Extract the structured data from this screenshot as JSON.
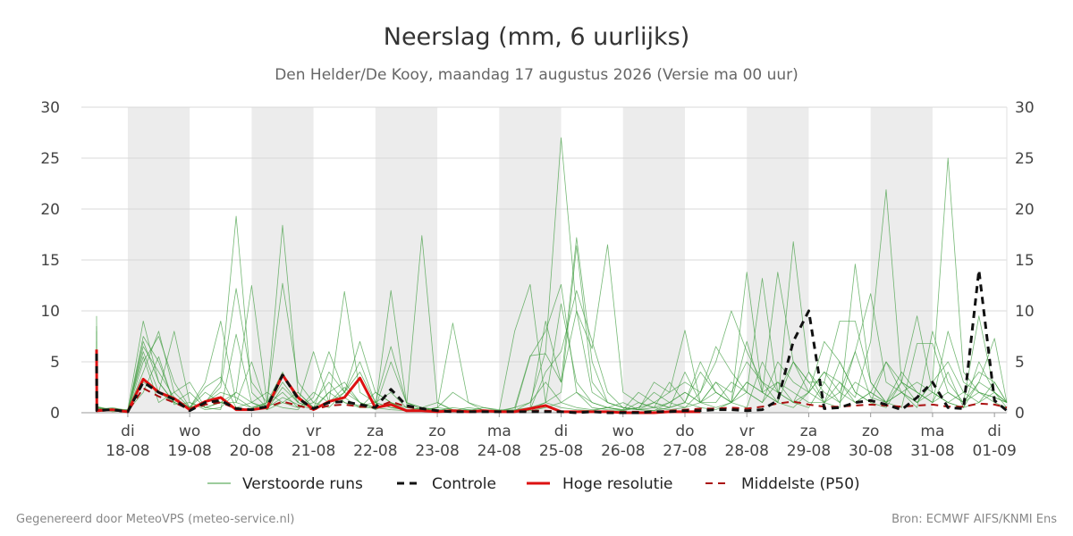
{
  "title": "Neerslag (mm, 6 uurlijks)",
  "subtitle": "Den Helder/De Kooy, maandag 17 augustus 2026 (Versie ma 00 uur)",
  "footer_left": "Gegenereerd door MeteoVPS (meteo-service.nl)",
  "footer_right": "Bron: ECMWF AIFS/KNMI Ens",
  "legend": [
    {
      "label": "Verstoorde runs",
      "color": "#3a9a3a",
      "style": "thin-solid"
    },
    {
      "label": "Controle",
      "color": "#111111",
      "style": "dashed"
    },
    {
      "label": "Hoge resolutie",
      "color": "#dd1111",
      "style": "solid"
    },
    {
      "label": "Middelste (P50)",
      "color": "#aa1111",
      "style": "dashed"
    }
  ],
  "chart_data": {
    "type": "line",
    "x_unit": "days after 2026-08-17 00:00, 6-hourly steps",
    "ylim": [
      0,
      30
    ],
    "yticks": [
      0,
      5,
      10,
      15,
      20,
      25,
      30
    ],
    "grid": true,
    "legend_position": "bottom",
    "x_tick_labels": [
      {
        "day": "di",
        "date": "18-08"
      },
      {
        "day": "wo",
        "date": "19-08"
      },
      {
        "day": "do",
        "date": "20-08"
      },
      {
        "day": "vr",
        "date": "21-08"
      },
      {
        "day": "za",
        "date": "22-08"
      },
      {
        "day": "zo",
        "date": "23-08"
      },
      {
        "day": "ma",
        "date": "24-08"
      },
      {
        "day": "di",
        "date": "25-08"
      },
      {
        "day": "wo",
        "date": "26-08"
      },
      {
        "day": "do",
        "date": "27-08"
      },
      {
        "day": "vr",
        "date": "28-08"
      },
      {
        "day": "za",
        "date": "29-08"
      },
      {
        "day": "zo",
        "date": "30-08"
      },
      {
        "day": "ma",
        "date": "31-08"
      },
      {
        "day": "di",
        "date": "01-09"
      }
    ],
    "shaded_days": [
      1,
      3,
      5,
      7,
      9,
      11,
      13
    ],
    "series": [
      {
        "name": "Controle",
        "color": "#111111",
        "dash": "8,6",
        "width": 3,
        "x": [
          0,
          0.25,
          0.5,
          0.75,
          1.0,
          1.25,
          1.5,
          1.75,
          2.0,
          2.25,
          2.5,
          2.75,
          3.0,
          3.25,
          3.5,
          3.75,
          4.0,
          4.25,
          4.5,
          4.75,
          5.0,
          5.25,
          5.5,
          5.75,
          6.0,
          6.25,
          6.5,
          6.75,
          7.0,
          7.25,
          7.5,
          7.75,
          8.0,
          8.25,
          8.5,
          8.75,
          9.0,
          9.25,
          9.5,
          9.75,
          10.0,
          10.25,
          10.5,
          10.75,
          11.0,
          11.25,
          11.5,
          11.75,
          12.0,
          12.25,
          12.5,
          12.75,
          13.0,
          13.25,
          13.5,
          13.75,
          14.0,
          14.25,
          14.5,
          14.75,
          15.0
        ],
        "y": [
          5.8,
          0.2,
          0.3,
          0.1,
          3.0,
          2.0,
          1.3,
          0.2,
          1.0,
          1.2,
          0.4,
          0.3,
          0.6,
          3.7,
          1.4,
          0.4,
          1.0,
          1.1,
          0.8,
          0.5,
          2.3,
          0.7,
          0.4,
          0.2,
          0.1,
          0.1,
          0.1,
          0.1,
          0.1,
          0.1,
          0.1,
          0.1,
          0.0,
          0.1,
          0.0,
          0.0,
          0.0,
          0.1,
          0.1,
          0.2,
          0.2,
          0.3,
          0.3,
          0.2,
          0.3,
          1.2,
          7.0,
          10.0,
          0.4,
          0.5,
          1.0,
          1.2,
          0.8,
          0.3,
          1.5,
          3.0,
          0.5,
          0.4,
          14.0,
          1.2,
          0.2
        ]
      },
      {
        "name": "Hoge resolutie",
        "color": "#dd1111",
        "dash": "",
        "width": 3,
        "x": [
          0,
          0.25,
          0.5,
          0.75,
          1.0,
          1.25,
          1.5,
          1.75,
          2.0,
          2.25,
          2.5,
          2.75,
          3.0,
          3.25,
          3.5,
          3.75,
          4.0,
          4.25,
          4.5,
          4.75,
          5.0,
          5.25,
          5.5,
          5.75,
          6.0,
          6.25,
          6.5,
          6.75,
          7.0,
          7.25,
          7.5,
          7.75,
          8.0,
          8.25,
          8.5,
          8.75,
          9.0,
          9.25,
          9.5,
          9.75,
          10.0
        ],
        "y": [
          6.2,
          0.2,
          0.3,
          0.1,
          3.3,
          2.0,
          1.4,
          0.3,
          1.1,
          1.5,
          0.3,
          0.3,
          0.5,
          3.7,
          1.5,
          0.3,
          1.1,
          1.5,
          3.4,
          0.5,
          0.8,
          0.2,
          0.2,
          0.1,
          0.2,
          0.1,
          0.2,
          0.1,
          0.1,
          0.4,
          0.7,
          0.1,
          0.1,
          0.1,
          0.1,
          0.0,
          0.0,
          0.0,
          0.1,
          0.1,
          0.1
        ]
      },
      {
        "name": "Middelste (P50)",
        "color": "#aa1111",
        "dash": "8,6",
        "width": 2,
        "x": [
          0,
          0.25,
          0.5,
          0.75,
          1.0,
          1.25,
          1.5,
          1.75,
          2.0,
          2.25,
          2.5,
          2.75,
          3.0,
          3.25,
          3.5,
          3.75,
          4.0,
          4.25,
          4.5,
          4.75,
          5.0,
          5.25,
          5.5,
          5.75,
          6.0,
          6.25,
          6.5,
          6.75,
          7.0,
          7.25,
          7.5,
          7.75,
          8.0,
          8.25,
          8.5,
          8.75,
          9.0,
          9.25,
          9.5,
          9.75,
          10.0,
          10.25,
          10.5,
          10.75,
          11.0,
          11.25,
          11.5,
          11.75,
          12.0,
          12.25,
          12.5,
          12.75,
          13.0,
          13.25,
          13.5,
          13.75,
          14.0,
          14.25,
          14.5,
          14.75,
          15.0
        ],
        "y": [
          5.5,
          0.3,
          0.3,
          0.1,
          2.4,
          1.6,
          1.0,
          0.3,
          0.8,
          1.0,
          0.4,
          0.3,
          0.5,
          1.1,
          0.7,
          0.3,
          0.7,
          0.8,
          0.6,
          0.5,
          1.1,
          0.6,
          0.3,
          0.2,
          0.1,
          0.1,
          0.1,
          0.1,
          0.1,
          0.2,
          0.2,
          0.1,
          0.1,
          0.1,
          0.1,
          0.1,
          0.1,
          0.1,
          0.2,
          0.3,
          0.4,
          0.4,
          0.5,
          0.4,
          0.6,
          0.9,
          1.1,
          0.8,
          0.6,
          0.6,
          0.7,
          0.8,
          0.7,
          0.6,
          0.7,
          0.8,
          0.6,
          0.6,
          0.9,
          0.8,
          0.5
        ]
      }
    ],
    "perturbed_runs": {
      "name": "Verstoorde runs",
      "color": "#3a9a3a",
      "width": 0.8,
      "x": [
        0,
        0.25,
        0.5,
        0.75,
        1.0,
        1.25,
        1.5,
        1.75,
        2.0,
        2.25,
        2.5,
        2.75,
        3.0,
        3.25,
        3.5,
        3.75,
        4.0,
        4.25,
        4.5,
        4.75,
        5.0,
        5.25,
        5.5,
        5.75,
        6.0,
        6.25,
        6.5,
        6.75,
        7.0,
        7.25,
        7.5,
        7.75,
        8.0,
        8.25,
        8.5,
        8.75,
        9.0,
        9.25,
        9.5,
        9.75,
        10.0,
        10.25,
        10.5,
        10.75,
        11.0,
        11.25,
        11.5,
        11.75,
        12.0,
        12.25,
        12.5,
        12.75,
        13.0,
        13.25,
        13.5,
        13.75,
        14.0,
        14.25,
        14.5,
        14.75,
        15.0
      ],
      "runs": [
        [
          9.5,
          0.5,
          0.2,
          0.0,
          7.5,
          5.0,
          1.0,
          0.5,
          1.0,
          3.0,
          19.3,
          2.0,
          0.5,
          1.5,
          0.8,
          0.3,
          2.0,
          1.0,
          0.5,
          0.5,
          12.0,
          1.0,
          0.5,
          0.2,
          0.5,
          0.3,
          0.2,
          0.1,
          0.2,
          5.5,
          8.0,
          12.6,
          2.0,
          0.5,
          0.3,
          0.2,
          1.0,
          0.5,
          0.3,
          0.5,
          2.0,
          5.0,
          10.0,
          6.0,
          3.0,
          1.0,
          0.5,
          2.0,
          4.0,
          2.0,
          6.0,
          11.7,
          3.0,
          2.0,
          1.0,
          3.0,
          25.0,
          4.0,
          2.0,
          1.5,
          1.0
        ],
        [
          8.0,
          0.3,
          0.5,
          0.2,
          6.0,
          2.0,
          8.0,
          1.0,
          0.3,
          0.5,
          2.0,
          12.5,
          1.0,
          18.4,
          2.0,
          0.5,
          1.0,
          1.5,
          0.5,
          2.0,
          1.0,
          0.5,
          17.4,
          1.0,
          0.2,
          0.5,
          0.3,
          0.2,
          0.5,
          1.0,
          6.0,
          27.0,
          10.0,
          2.0,
          1.0,
          0.5,
          0.3,
          0.5,
          1.0,
          0.5,
          1.0,
          2.0,
          1.0,
          3.0,
          2.0,
          13.8,
          5.0,
          2.0,
          1.0,
          3.0,
          1.5,
          7.0,
          21.9,
          3.0,
          1.0,
          2.0,
          1.0,
          0.5,
          5.0,
          2.0,
          1.0
        ],
        [
          7.0,
          0.2,
          0.3,
          0.1,
          5.0,
          7.5,
          3.0,
          0.5,
          2.0,
          1.0,
          0.5,
          0.3,
          1.0,
          12.7,
          3.0,
          1.0,
          0.5,
          2.0,
          4.0,
          1.0,
          0.5,
          0.3,
          0.2,
          0.5,
          8.8,
          1.0,
          0.5,
          0.2,
          0.3,
          0.5,
          1.0,
          2.0,
          16.4,
          3.0,
          1.0,
          0.5,
          0.3,
          0.2,
          1.0,
          2.0,
          1.0,
          0.5,
          1.0,
          13.8,
          2.0,
          1.0,
          16.8,
          4.0,
          1.0,
          0.5,
          14.6,
          3.0,
          1.0,
          0.5,
          6.8,
          6.8,
          2.0,
          1.0,
          9.5,
          2.0,
          0.5
        ],
        [
          6.0,
          0.4,
          0.2,
          0.3,
          9.0,
          3.0,
          1.0,
          2.0,
          0.5,
          0.3,
          7.7,
          1.0,
          2.0,
          1.0,
          0.5,
          1.5,
          6.0,
          2.0,
          1.0,
          0.5,
          0.3,
          0.2,
          0.5,
          1.0,
          0.3,
          0.2,
          0.1,
          0.2,
          8.0,
          12.6,
          1.0,
          0.5,
          0.3,
          0.2,
          0.5,
          1.0,
          0.3,
          3.0,
          2.0,
          8.1,
          1.0,
          3.0,
          1.0,
          0.5,
          5.0,
          2.0,
          1.0,
          0.5,
          3.0,
          9.0,
          9.0,
          3.0,
          1.0,
          2.0,
          0.5,
          8.0,
          3.0,
          1.0,
          2.0,
          1.0,
          0.5
        ],
        [
          5.0,
          0.6,
          0.3,
          0.2,
          4.0,
          8.0,
          2.0,
          0.5,
          1.0,
          2.5,
          12.2,
          3.0,
          1.0,
          0.5,
          0.3,
          2.0,
          1.0,
          11.9,
          2.0,
          1.0,
          6.5,
          1.0,
          0.5,
          0.3,
          0.2,
          0.3,
          0.2,
          0.1,
          0.2,
          0.5,
          9.0,
          3.0,
          17.2,
          5.0,
          1.0,
          0.5,
          0.3,
          0.2,
          0.5,
          1.0,
          0.5,
          0.3,
          1.0,
          2.0,
          13.2,
          2.0,
          5.0,
          3.0,
          1.0,
          5.0,
          2.0,
          1.0,
          0.5,
          3.0,
          9.5,
          2.0,
          1.0,
          0.5,
          3.0,
          7.3,
          1.0
        ],
        [
          4.0,
          0.3,
          0.4,
          0.3,
          5.5,
          1.0,
          2.0,
          3.0,
          0.5,
          1.0,
          2.0,
          1.0,
          0.5,
          3.0,
          1.0,
          0.5,
          4.0,
          2.0,
          5.0,
          1.0,
          0.5,
          0.3,
          0.2,
          0.5,
          2.0,
          1.0,
          0.2,
          0.1,
          0.5,
          5.6,
          5.8,
          3.0,
          10.0,
          6.3,
          16.5,
          2.0,
          1.0,
          0.5,
          3.0,
          1.0,
          5.0,
          2.0,
          1.0,
          3.0,
          2.0,
          1.0,
          5.0,
          3.0,
          3.0,
          1.0,
          6.0,
          1.5,
          1.0,
          3.0,
          2.0,
          1.0,
          4.0,
          0.5,
          1.0,
          3.0,
          1.0
        ],
        [
          3.5,
          0.5,
          0.3,
          0.2,
          3.0,
          2.0,
          1.0,
          0.5,
          2.5,
          3.5,
          0.5,
          1.0,
          0.3,
          2.5,
          1.0,
          0.5,
          2.0,
          3.0,
          1.0,
          0.5,
          5.0,
          1.0,
          0.3,
          0.2,
          0.1,
          0.2,
          0.1,
          0.1,
          0.2,
          0.3,
          4.0,
          6.0,
          12.0,
          7.0,
          2.0,
          0.5,
          0.3,
          1.0,
          2.0,
          3.0,
          2.0,
          6.5,
          4.0,
          2.0,
          1.0,
          5.0,
          3.0,
          2.0,
          7.0,
          5.0,
          2.0,
          1.0,
          5.0,
          3.0,
          2.0,
          1.0,
          8.0,
          3.0,
          2.0,
          1.5,
          1.0
        ],
        [
          3.0,
          0.2,
          0.2,
          0.1,
          6.5,
          4.0,
          1.5,
          0.5,
          1.0,
          2.0,
          1.5,
          0.5,
          0.8,
          2.0,
          0.5,
          1.0,
          3.0,
          1.0,
          0.7,
          1.0,
          2.0,
          0.5,
          0.3,
          0.2,
          0.1,
          0.1,
          0.2,
          0.1,
          0.1,
          0.2,
          0.5,
          1.0,
          2.0,
          1.0,
          0.5,
          0.3,
          2.0,
          1.0,
          0.5,
          4.0,
          1.0,
          3.0,
          2.0,
          5.0,
          3.0,
          2.0,
          1.0,
          4.0,
          2.0,
          1.0,
          3.0,
          2.0,
          1.0,
          4.0,
          2.0,
          1.0,
          2.0,
          1.0,
          3.0,
          2.0,
          1.0
        ],
        [
          2.2,
          0.4,
          0.1,
          0.2,
          2.0,
          5.5,
          0.8,
          1.0,
          0.5,
          1.0,
          1.0,
          5.0,
          0.3,
          1.0,
          2.0,
          0.5,
          1.0,
          2.5,
          1.0,
          0.3,
          1.0,
          0.2,
          0.5,
          0.3,
          0.2,
          0.1,
          0.1,
          0.2,
          0.1,
          0.3,
          1.0,
          10.7,
          3.0,
          1.0,
          0.5,
          0.3,
          0.5,
          2.0,
          1.0,
          2.0,
          1.0,
          1.0,
          3.0,
          2.0,
          1.0,
          3.0,
          2.0,
          1.0,
          1.0,
          2.0,
          1.0,
          2.0,
          1.0,
          2.0,
          3.0,
          2.0,
          1.0,
          2.0,
          1.0,
          2.0,
          1.0
        ],
        [
          8.5,
          0.6,
          0.2,
          0.1,
          7.0,
          3.0,
          1.0,
          0.5,
          3.0,
          9.0,
          1.0,
          0.5,
          1.0,
          4.0,
          1.0,
          6.0,
          1.0,
          2.0,
          7.0,
          2.0,
          1.0,
          0.3,
          0.2,
          0.5,
          0.3,
          0.2,
          0.5,
          0.3,
          0.2,
          1.0,
          3.0,
          1.0,
          0.5,
          0.3,
          0.5,
          0.2,
          0.5,
          1.0,
          0.5,
          1.0,
          4.0,
          2.0,
          1.0,
          7.0,
          2.0,
          3.0,
          1.0,
          2.0,
          4.0,
          3.0,
          1.0,
          2.0,
          5.0,
          2.0,
          1.0,
          3.0,
          5.0,
          2.0,
          4.0,
          3.0,
          1.0
        ]
      ]
    }
  }
}
